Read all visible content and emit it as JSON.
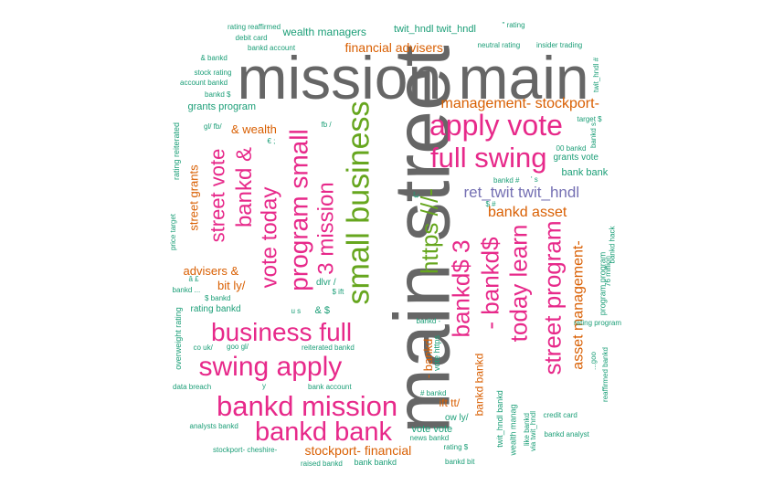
{
  "palette": {
    "grey": "#666666",
    "pink": "#e7298a",
    "green": "#66a61e",
    "purple": "#7570b3",
    "orange": "#d95f02",
    "teal": "#1b9e77"
  },
  "words": [
    {
      "id": "w-main-street",
      "text": "main street",
      "color": "grey"
    },
    {
      "id": "w-mission-main",
      "text": "mission main",
      "color": "grey"
    },
    {
      "id": "w-apply-vote",
      "text": "apply vote",
      "color": "pink"
    },
    {
      "id": "w-full-swing",
      "text": "full swing",
      "color": "pink"
    },
    {
      "id": "w-small-business",
      "text": "small business",
      "color": "green"
    },
    {
      "id": "w-https",
      "text": "https ///-",
      "color": "green"
    },
    {
      "id": "w-ret-twit",
      "text": "ret_twit twit_hndl",
      "color": "purple"
    },
    {
      "id": "w-management-stockport",
      "text": "management- stockport-",
      "color": "orange"
    },
    {
      "id": "w-bankd-asset",
      "text": "bankd asset",
      "color": "orange"
    },
    {
      "id": "w-financial-advisers",
      "text": "financial advisers",
      "color": "orange"
    },
    {
      "id": "w-wealth-managers",
      "text": "wealth managers",
      "color": "teal"
    },
    {
      "id": "w-twit-hndl-pair",
      "text": "twit_hndl twit_hndl",
      "color": "teal"
    },
    {
      "id": "w-bankd-3",
      "text": "bankd$ 3",
      "color": "pink"
    },
    {
      "id": "w-bankd-dollar",
      "text": "- bankd$",
      "color": "pink"
    },
    {
      "id": "w-today-learn",
      "text": "today learn",
      "color": "pink"
    },
    {
      "id": "w-street-program",
      "text": "street program",
      "color": "pink"
    },
    {
      "id": "w-asset-management",
      "text": "asset management-",
      "color": "orange"
    },
    {
      "id": "w-program-small",
      "text": "program small",
      "color": "pink"
    },
    {
      "id": "w-3-mission",
      "text": "3 mission",
      "color": "pink"
    },
    {
      "id": "w-vote-today",
      "text": "vote today",
      "color": "pink"
    },
    {
      "id": "w-bankd-amp",
      "text": "bankd &",
      "color": "pink"
    },
    {
      "id": "w-street-vote",
      "text": "street vote",
      "color": "pink"
    },
    {
      "id": "w-street-grants",
      "text": "street grants",
      "color": "orange"
    },
    {
      "id": "w-business-full",
      "text": "business full",
      "color": "pink"
    },
    {
      "id": "w-swing-apply",
      "text": "swing apply",
      "color": "pink"
    },
    {
      "id": "w-bankd-mission",
      "text": "bankd mission",
      "color": "pink"
    },
    {
      "id": "w-bankd-bank",
      "text": "bankd bank",
      "color": "pink"
    },
    {
      "id": "w-stockport-financial",
      "text": "stockport- financial",
      "color": "orange"
    },
    {
      "id": "w-grants-program",
      "text": "grants program",
      "color": "teal"
    },
    {
      "id": "w-amp-wealth",
      "text": "& wealth",
      "color": "orange"
    },
    {
      "id": "w-advisers-amp",
      "text": "advisers &",
      "color": "orange"
    },
    {
      "id": "w-bit-ly",
      "text": "bit ly/",
      "color": "orange"
    },
    {
      "id": "w-rating-reaffirmed",
      "text": "rating reaffirmed",
      "color": "teal"
    },
    {
      "id": "w-debit-card",
      "text": "debit card",
      "color": "teal"
    },
    {
      "id": "w-bankd-account-top",
      "text": "bankd account",
      "color": "teal"
    },
    {
      "id": "w-amp-bankd",
      "text": "& bankd",
      "color": "teal"
    },
    {
      "id": "w-stock-rating",
      "text": "stock rating",
      "color": "teal"
    },
    {
      "id": "w-account-bankd",
      "text": "account bankd",
      "color": "teal"
    },
    {
      "id": "w-bankd-dollar-small",
      "text": "bankd $",
      "color": "teal"
    },
    {
      "id": "w-rating-reiterated",
      "text": "rating reiterated",
      "color": "teal"
    },
    {
      "id": "w-gl-fb",
      "text": "gl/ fb/",
      "color": "teal"
    },
    {
      "id": "w-fb",
      "text": "fb /",
      "color": "teal"
    },
    {
      "id": "w-euro-semi",
      "text": "€ ;",
      "color": "teal"
    },
    {
      "id": "w-price-target",
      "text": "price target",
      "color": "teal"
    },
    {
      "id": "w-a-pound",
      "text": "â £",
      "color": "teal"
    },
    {
      "id": "w-bankd-dots",
      "text": "bankd ...",
      "color": "teal"
    },
    {
      "id": "w-dollar-bankd",
      "text": "$ bankd",
      "color": "teal"
    },
    {
      "id": "w-rating-bankd",
      "text": "rating bankd",
      "color": "teal"
    },
    {
      "id": "w-overweight-rating",
      "text": "overweight rating",
      "color": "teal"
    },
    {
      "id": "w-co-uk",
      "text": "co uk/",
      "color": "teal"
    },
    {
      "id": "w-goo-gl",
      "text": "goo gl/",
      "color": "teal"
    },
    {
      "id": "w-reiterated-bankd",
      "text": "reiterated bankd",
      "color": "teal"
    },
    {
      "id": "w-data-breach",
      "text": "data breach",
      "color": "teal"
    },
    {
      "id": "w-y",
      "text": "y",
      "color": "teal"
    },
    {
      "id": "w-bank-account",
      "text": "bank account",
      "color": "teal"
    },
    {
      "id": "w-analysts-bankd",
      "text": "analysts bankd",
      "color": "teal"
    },
    {
      "id": "w-stockport-cheshire",
      "text": "stockport- cheshire-",
      "color": "teal"
    },
    {
      "id": "w-raised-bankd",
      "text": "raised bankd",
      "color": "teal"
    },
    {
      "id": "w-bank-bankd",
      "text": "bank bankd",
      "color": "teal"
    },
    {
      "id": "w-bankd-bit",
      "text": "bankd bit",
      "color": "teal"
    },
    {
      "id": "w-dlvr",
      "text": "dlvr /",
      "color": "teal"
    },
    {
      "id": "w-amp-dollar",
      "text": "& $",
      "color": "teal"
    },
    {
      "id": "w-u-s",
      "text": "u s",
      "color": "teal"
    },
    {
      "id": "w-dollar-ift",
      "text": "$ ift",
      "color": "teal"
    },
    {
      "id": "w-bankd-dash",
      "text": "bankd -",
      "color": "teal"
    },
    {
      "id": "w-dash-bankd",
      "text": "- bankd",
      "color": "orange"
    },
    {
      "id": "w-vote-https",
      "text": "vote https",
      "color": "teal"
    },
    {
      "id": "w-ift-tt",
      "text": "ift tt/",
      "color": "orange"
    },
    {
      "id": "w-vote-vote",
      "text": "vote vote",
      "color": "teal"
    },
    {
      "id": "w-ow-ly",
      "text": "ow ly/",
      "color": "teal"
    },
    {
      "id": "w-news-bankd",
      "text": "news bankd",
      "color": "teal"
    },
    {
      "id": "w-rating-dollar",
      "text": "rating $",
      "color": "teal"
    },
    {
      "id": "w-hash-bankd",
      "text": "# bankd",
      "color": "teal"
    },
    {
      "id": "w-bankd-bankd",
      "text": "bankd bankd",
      "color": "orange"
    },
    {
      "id": "w-twit-hndl-bankd",
      "text": "twit_hndl bankd",
      "color": "teal"
    },
    {
      "id": "w-wealth-manag",
      "text": "wealth manag",
      "color": "teal"
    },
    {
      "id": "w-like-bankd",
      "text": "like bankd",
      "color": "teal"
    },
    {
      "id": "w-via-twit-hndl",
      "text": "via twit_hndl",
      "color": "teal"
    },
    {
      "id": "w-credit-card",
      "text": "credit card",
      "color": "teal"
    },
    {
      "id": "w-bankd-analyst",
      "text": "bankd analyst",
      "color": "teal"
    },
    {
      "id": "w-bankd-hash",
      "text": "bankd #",
      "color": "teal"
    },
    {
      "id": "w-s-hash",
      "text": "' s",
      "color": "teal"
    },
    {
      "id": "w-dollar-hash",
      "text": "$ #",
      "color": "teal"
    },
    {
      "id": "w-euro-quote",
      "text": "€\"",
      "color": "teal"
    },
    {
      "id": "w-00-bankd",
      "text": "00 bankd",
      "color": "teal"
    },
    {
      "id": "w-grants-vote",
      "text": "grants vote",
      "color": "teal"
    },
    {
      "id": "w-bank-bank",
      "text": "bank bank",
      "color": "teal"
    },
    {
      "id": "w-target-dollar",
      "text": "target $",
      "color": "teal"
    },
    {
      "id": "w-bankd-s",
      "text": "bankd s",
      "color": "teal"
    },
    {
      "id": "w-twit-hndl-hash",
      "text": "twit_hndl #",
      "color": "teal"
    },
    {
      "id": "w-bankd-hack",
      "text": "bankd hack",
      "color": "teal"
    },
    {
      "id": "w-76-million",
      "text": "76 million",
      "color": "teal"
    },
    {
      "id": "w-program-program",
      "text": "program program",
      "color": "teal"
    },
    {
      "id": "w-rating-program",
      "text": "rating program",
      "color": "teal"
    },
    {
      "id": "w-goo",
      "text": "...goo",
      "color": "teal"
    },
    {
      "id": "w-reaffirmed-bankd",
      "text": "reaffirmed bankd",
      "color": "teal"
    },
    {
      "id": "w-neutral-rating",
      "text": "neutral rating",
      "color": "teal"
    },
    {
      "id": "w-insider-trading",
      "text": "insider trading",
      "color": "teal"
    },
    {
      "id": "w-quote-rating",
      "text": "\" rating",
      "color": "teal"
    }
  ]
}
